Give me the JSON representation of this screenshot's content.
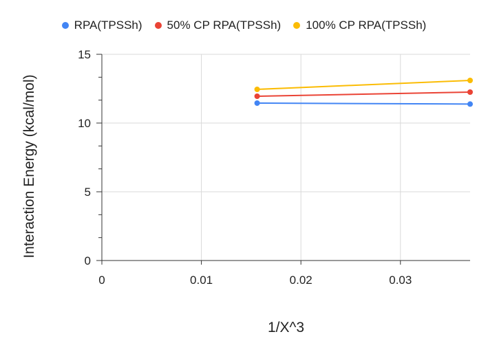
{
  "chart_data": {
    "type": "line",
    "title": "",
    "xlabel": "1/X^3",
    "ylabel": "Interaction Energy (kcal/mol)",
    "xlim": [
      0,
      0.037
    ],
    "ylim": [
      0,
      15
    ],
    "x_ticks": [
      "0",
      "0.01",
      "0.02",
      "0.03"
    ],
    "x_tick_values": [
      0,
      0.01,
      0.02,
      0.03
    ],
    "y_ticks": [
      "0",
      "5",
      "10",
      "15"
    ],
    "y_tick_values": [
      0,
      5,
      10,
      15
    ],
    "grid": true,
    "legend_position": "top",
    "x": [
      0.0156,
      0.037
    ],
    "series": [
      {
        "name": "RPA(TPSSh)",
        "color": "#4285f4",
        "values": [
          11.45,
          11.38
        ]
      },
      {
        "name": "50% CP RPA(TPSSh)",
        "color": "#ea4335",
        "values": [
          11.95,
          12.25
        ]
      },
      {
        "name": "100% CP RPA(TPSSh)",
        "color": "#fbbc04",
        "values": [
          12.45,
          13.1
        ]
      }
    ]
  }
}
